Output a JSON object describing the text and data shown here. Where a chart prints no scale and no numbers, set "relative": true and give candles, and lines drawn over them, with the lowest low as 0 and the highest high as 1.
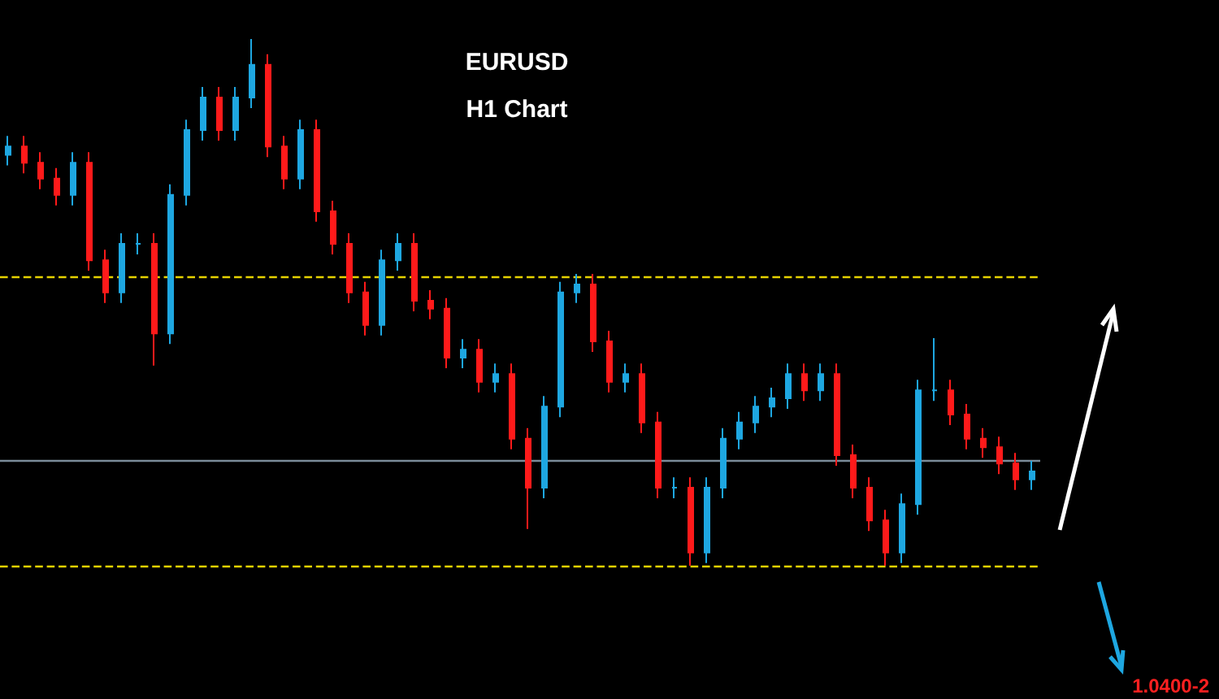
{
  "chart_data": {
    "type": "candlestick",
    "title": "EURUSD",
    "subtitle": "H1 Chart",
    "relative": true,
    "grid": false,
    "categories": [
      null,
      null,
      null,
      null,
      null,
      null,
      null,
      null,
      null,
      null,
      null,
      null,
      null,
      null,
      null,
      null,
      null,
      null,
      null,
      null,
      null,
      null,
      null,
      null,
      null,
      null,
      null,
      null,
      null,
      null,
      null,
      null,
      null,
      null,
      null,
      null,
      null,
      null,
      null,
      null,
      null,
      null,
      null,
      null,
      null,
      null,
      null,
      null,
      null,
      null,
      null,
      null,
      null,
      null,
      null,
      null,
      null,
      null,
      null,
      null,
      null,
      null,
      null,
      null
    ],
    "ohlc": [
      [
        0.78,
        0.816,
        0.76,
        0.796
      ],
      [
        0.796,
        0.816,
        0.745,
        0.765
      ],
      [
        0.765,
        0.785,
        0.715,
        0.735
      ],
      [
        0.735,
        0.755,
        0.684,
        0.704
      ],
      [
        0.704,
        0.785,
        0.684,
        0.765
      ],
      [
        0.765,
        0.785,
        0.56,
        0.58
      ],
      [
        0.58,
        0.6,
        0.499,
        0.519
      ],
      [
        0.519,
        0.631,
        0.499,
        0.611
      ],
      [
        0.611,
        0.631,
        0.591,
        0.611
      ],
      [
        0.611,
        0.631,
        0.38,
        0.441
      ],
      [
        0.441,
        0.724,
        0.421,
        0.704
      ],
      [
        0.704,
        0.847,
        0.684,
        0.827
      ],
      [
        0.827,
        0.909,
        0.807,
        0.889
      ],
      [
        0.889,
        0.909,
        0.807,
        0.827
      ],
      [
        0.827,
        0.909,
        0.807,
        0.889
      ],
      [
        0.889,
        1.0,
        0.869,
        0.951
      ],
      [
        0.951,
        0.971,
        0.776,
        0.796
      ],
      [
        0.796,
        0.816,
        0.715,
        0.735
      ],
      [
        0.735,
        0.847,
        0.715,
        0.827
      ],
      [
        0.827,
        0.847,
        0.653,
        0.673
      ],
      [
        0.673,
        0.693,
        0.591,
        0.611
      ],
      [
        0.611,
        0.631,
        0.499,
        0.519
      ],
      [
        0.519,
        0.539,
        0.437,
        0.457
      ],
      [
        0.457,
        0.6,
        0.437,
        0.58
      ],
      [
        0.58,
        0.631,
        0.56,
        0.611
      ],
      [
        0.611,
        0.631,
        0.483,
        0.503
      ],
      [
        0.503,
        0.523,
        0.468,
        0.488
      ],
      [
        0.488,
        0.508,
        0.375,
        0.395
      ],
      [
        0.395,
        0.43,
        0.375,
        0.41
      ],
      [
        0.41,
        0.43,
        0.329,
        0.349
      ],
      [
        0.349,
        0.384,
        0.329,
        0.364
      ],
      [
        0.364,
        0.384,
        0.221,
        0.241
      ],
      [
        0.241,
        0.261,
        0.07,
        0.148
      ],
      [
        0.148,
        0.322,
        0.128,
        0.302
      ],
      [
        0.302,
        0.539,
        0.282,
        0.519
      ],
      [
        0.519,
        0.554,
        0.499,
        0.534
      ],
      [
        0.534,
        0.554,
        0.406,
        0.426
      ],
      [
        0.426,
        0.446,
        0.329,
        0.349
      ],
      [
        0.349,
        0.384,
        0.329,
        0.364
      ],
      [
        0.364,
        0.384,
        0.252,
        0.272
      ],
      [
        0.272,
        0.292,
        0.128,
        0.148
      ],
      [
        0.148,
        0.168,
        0.128,
        0.148
      ],
      [
        0.148,
        0.168,
        0.0,
        0.025
      ],
      [
        0.025,
        0.168,
        0.005,
        0.148
      ],
      [
        0.148,
        0.261,
        0.128,
        0.241
      ],
      [
        0.241,
        0.292,
        0.221,
        0.272
      ],
      [
        0.272,
        0.322,
        0.252,
        0.302
      ],
      [
        0.302,
        0.338,
        0.282,
        0.318
      ],
      [
        0.318,
        0.384,
        0.298,
        0.364
      ],
      [
        0.364,
        0.384,
        0.313,
        0.333
      ],
      [
        0.333,
        0.384,
        0.313,
        0.364
      ],
      [
        0.364,
        0.384,
        0.19,
        0.21
      ],
      [
        0.21,
        0.23,
        0.128,
        0.148
      ],
      [
        0.148,
        0.168,
        0.066,
        0.086
      ],
      [
        0.086,
        0.106,
        0.0,
        0.025
      ],
      [
        0.025,
        0.137,
        0.005,
        0.117
      ],
      [
        0.117,
        0.353,
        0.097,
        0.333
      ],
      [
        0.333,
        0.432,
        0.313,
        0.333
      ],
      [
        0.333,
        0.353,
        0.267,
        0.287
      ],
      [
        0.287,
        0.307,
        0.221,
        0.241
      ],
      [
        0.241,
        0.261,
        0.205,
        0.225
      ],
      [
        0.225,
        0.245,
        0.174,
        0.194
      ],
      [
        0.194,
        0.214,
        0.144,
        0.164
      ],
      [
        0.164,
        0.199,
        0.144,
        0.179
      ]
    ],
    "ref_lines": [
      {
        "axis": "y",
        "value": 0.551,
        "color": "#e6d200",
        "line_style": "dashed"
      },
      {
        "axis": "y",
        "value": 0,
        "color": "#e6d200",
        "line_style": "dashed"
      },
      {
        "axis": "y",
        "value": 0.198,
        "color": "#7a8b99",
        "line_style": "solid"
      }
    ],
    "annotations": [
      "1.0400-2"
    ]
  }
}
